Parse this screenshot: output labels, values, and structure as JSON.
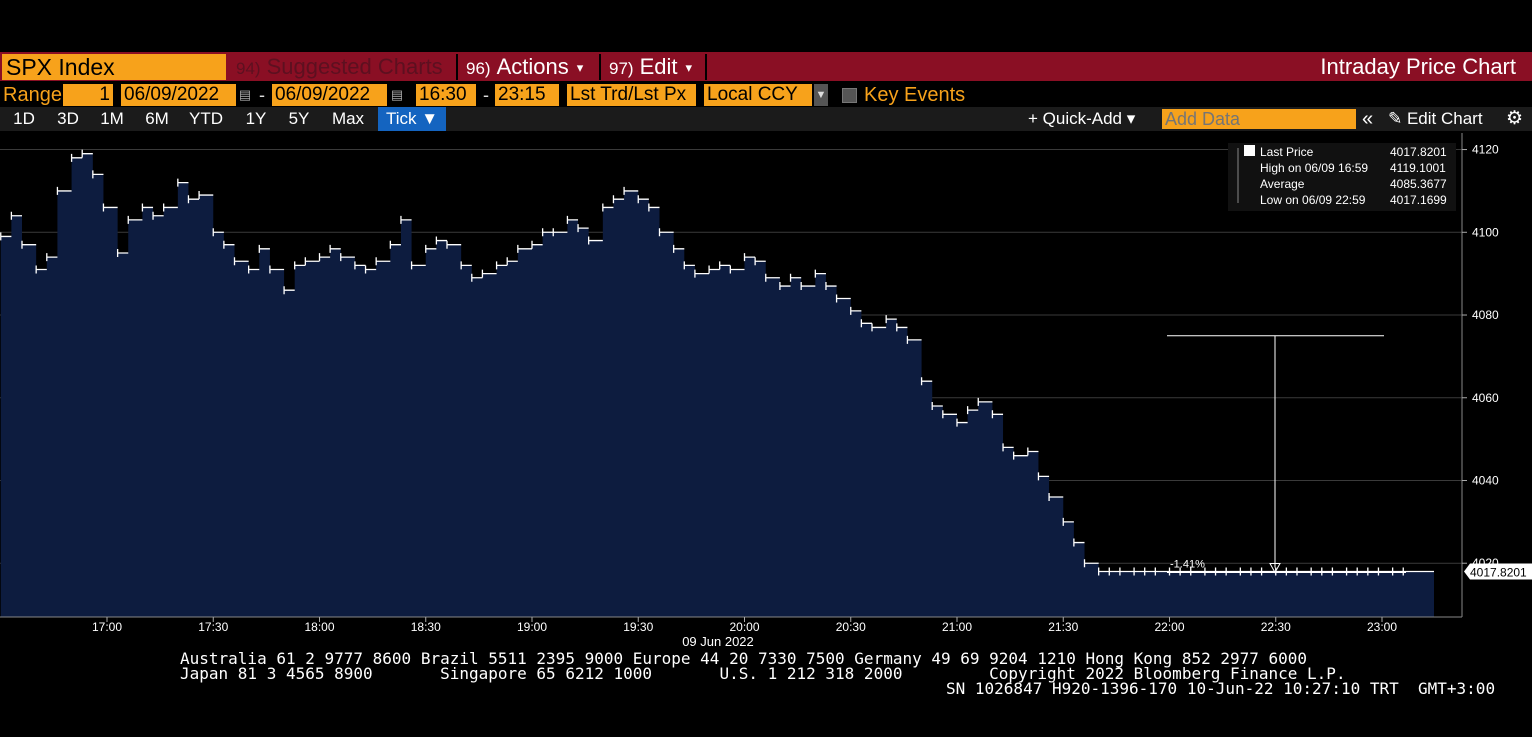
{
  "header": {
    "ticker": "SPX Index",
    "suggested": {
      "num": "94)",
      "label": "Suggested Charts"
    },
    "actions": {
      "num": "96)",
      "label": "Actions"
    },
    "edit": {
      "num": "97)",
      "label": "Edit"
    },
    "title": "Intraday Price Chart",
    "caret": "▾"
  },
  "controls": {
    "range_label": "Range",
    "range_value": "1",
    "start_date": "06/09/2022",
    "end_date": "06/09/2022",
    "start_time": "16:30",
    "end_time": "23:15",
    "price_type": "Lst Trd/Lst Px",
    "currency": "Local CCY",
    "key_events": "Key Events",
    "dash": "-",
    "cal_icon": "▤",
    "dd_arrow": "▼"
  },
  "toolbar": {
    "periods": [
      "1D",
      "3D",
      "1M",
      "6M",
      "YTD",
      "1Y",
      "5Y",
      "Max"
    ],
    "tick_label": "Tick ▼",
    "quick_add": "+ Quick-Add ▾",
    "add_data_placeholder": "Add Data",
    "collapse": "«",
    "edit_chart": "✎ Edit Chart",
    "gear": "⚙"
  },
  "colors": {
    "accent_orange": "#f7a21b",
    "header_red": "#8a0f24",
    "area_fill": "#0d1c3f",
    "line": "#ffffff",
    "tick_blue": "#1464c0"
  },
  "chart_data": {
    "type": "area",
    "title": "",
    "xlabel": "09 Jun 2022",
    "ylabel": "",
    "x_ticks": [
      "17:00",
      "17:30",
      "18:00",
      "18:30",
      "19:00",
      "19:30",
      "20:00",
      "20:30",
      "21:00",
      "21:30",
      "22:00",
      "22:30",
      "23:00"
    ],
    "y_ticks": [
      4020,
      4040,
      4060,
      4080,
      4100,
      4120
    ],
    "ylim": [
      4007,
      4124
    ],
    "grid": true,
    "series": [
      {
        "name": "Last Price",
        "x": [
          "16:30",
          "16:33",
          "16:36",
          "16:40",
          "16:43",
          "16:46",
          "16:50",
          "16:53",
          "16:56",
          "16:59",
          "17:03",
          "17:06",
          "17:10",
          "17:13",
          "17:16",
          "17:20",
          "17:23",
          "17:26",
          "17:30",
          "17:33",
          "17:36",
          "17:40",
          "17:43",
          "17:46",
          "17:50",
          "17:53",
          "17:56",
          "18:00",
          "18:03",
          "18:06",
          "18:10",
          "18:13",
          "18:16",
          "18:20",
          "18:23",
          "18:26",
          "18:30",
          "18:33",
          "18:36",
          "18:40",
          "18:43",
          "18:46",
          "18:50",
          "18:53",
          "18:56",
          "19:00",
          "19:03",
          "19:06",
          "19:10",
          "19:13",
          "19:16",
          "19:20",
          "19:23",
          "19:26",
          "19:30",
          "19:33",
          "19:36",
          "19:40",
          "19:43",
          "19:46",
          "19:50",
          "19:53",
          "19:56",
          "20:00",
          "20:03",
          "20:06",
          "20:10",
          "20:13",
          "20:16",
          "20:20",
          "20:23",
          "20:26",
          "20:30",
          "20:33",
          "20:36",
          "20:40",
          "20:43",
          "20:46",
          "20:50",
          "20:53",
          "20:56",
          "21:00",
          "21:03",
          "21:06",
          "21:10",
          "21:13",
          "21:16",
          "21:20",
          "21:23",
          "21:26",
          "21:30",
          "21:33",
          "21:36",
          "21:40",
          "21:43",
          "21:46",
          "21:50",
          "21:53",
          "21:56",
          "22:00",
          "22:03",
          "22:06",
          "22:10",
          "22:13",
          "22:16",
          "22:20",
          "22:23",
          "22:26",
          "22:30",
          "22:33",
          "22:36",
          "22:40",
          "22:43",
          "22:46",
          "22:50",
          "22:53",
          "22:56",
          "22:59",
          "23:03",
          "23:06"
        ],
        "values": [
          4099,
          4104,
          4097,
          4091,
          4094,
          4110,
          4118,
          4119,
          4114,
          4106,
          4095,
          4103,
          4106,
          4104,
          4106,
          4112,
          4108,
          4109,
          4100,
          4097,
          4093,
          4091,
          4096,
          4091,
          4086,
          4092,
          4093,
          4094,
          4096,
          4094,
          4092,
          4091,
          4093,
          4097,
          4103,
          4092,
          4096,
          4098,
          4097,
          4092,
          4089,
          4090,
          4092,
          4093,
          4096,
          4097,
          4100,
          4100,
          4103,
          4101,
          4098,
          4106,
          4108,
          4110,
          4108,
          4106,
          4100,
          4096,
          4092,
          4090,
          4091,
          4092,
          4091,
          4094,
          4093,
          4089,
          4087,
          4089,
          4087,
          4090,
          4087,
          4084,
          4081,
          4078,
          4077,
          4079,
          4077,
          4074,
          4064,
          4058,
          4056,
          4054,
          4057,
          4059,
          4056,
          4048,
          4046,
          4047,
          4041,
          4036,
          4030,
          4025,
          4020,
          4018,
          4018,
          4018,
          4018,
          4018,
          4018,
          4018,
          4018,
          4018,
          4018,
          4018,
          4018,
          4018,
          4018,
          4018,
          4018,
          4018,
          4018,
          4018,
          4018,
          4018,
          4018,
          4018,
          4018,
          4018,
          4018,
          4018
        ]
      }
    ],
    "legend": {
      "placement": "top-right",
      "items": [
        {
          "label": "Last Price",
          "value": "4017.8201"
        },
        {
          "label": "High on 06/09 16:59",
          "value": "4119.1001"
        },
        {
          "label": "Average",
          "value": "4085.3677"
        },
        {
          "label": "Low on 06/09 22:59",
          "value": "4017.1699"
        }
      ]
    },
    "last_price_tag": "4017.8201",
    "annotation": {
      "label": "-1.41%",
      "from_value": 4075,
      "to_value": 4018
    }
  },
  "footer": {
    "line1": "Australia 61 2 9777 8600 Brazil 5511 2395 9000 Europe 44 20 7330 7500 Germany 49 69 9204 1210 Hong Kong 852 2977 6000",
    "line2": "Japan 81 3 4565 8900       Singapore 65 6212 1000       U.S. 1 212 318 2000         Copyright 2022 Bloomberg Finance L.P.",
    "line3": "SN 1026847 H920-1396-170 10-Jun-22 10:27:10 TRT  GMT+3:00"
  }
}
